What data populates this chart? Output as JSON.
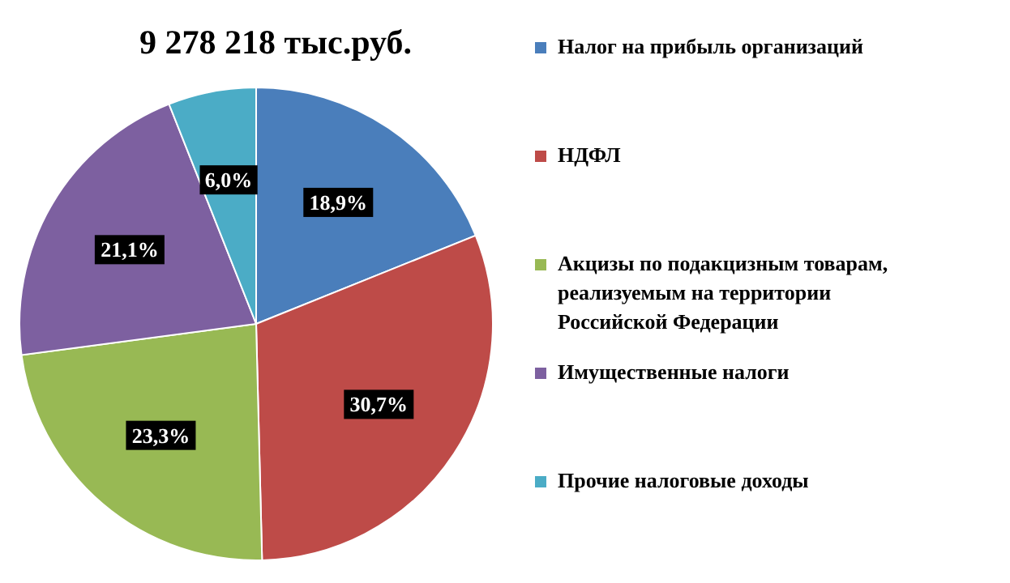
{
  "chart_data": {
    "type": "pie",
    "title": "9 278 218 тыс.руб.",
    "categories": [
      "Налог на прибыль организаций",
      "НДФЛ",
      "Акцизы по подакцизным товарам, реализуемым на территории Российской Федерации",
      "Имущественные налоги",
      "Прочие налоговые доходы"
    ],
    "values": [
      18.9,
      30.7,
      23.3,
      21.1,
      6.0
    ],
    "value_labels": [
      "18,9%",
      "30,7%",
      "23,3%",
      "21,1%",
      "6,0%"
    ],
    "colors": [
      "#4a7ebb",
      "#be4b48",
      "#98b954",
      "#7d60a0",
      "#4bacc6"
    ],
    "legend": "right"
  }
}
